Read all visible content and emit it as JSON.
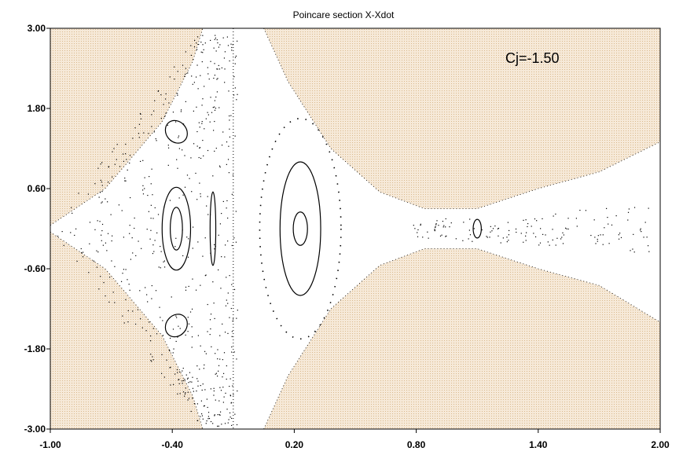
{
  "chart_data": {
    "type": "scatter",
    "title": "Poincare section X-Xdot",
    "annotation": "Cj=-1.50",
    "xlabel": "",
    "ylabel": "",
    "xlim": [
      -1.0,
      2.0
    ],
    "ylim": [
      -3.0,
      3.0
    ],
    "x_ticks": [
      -1.0,
      -0.4,
      0.2,
      0.8,
      1.4,
      2.0
    ],
    "x_tick_labels": [
      "-1.00",
      "-0.40",
      "0.20",
      "0.80",
      "1.40",
      "2.00"
    ],
    "y_ticks": [
      3.0,
      1.8,
      0.6,
      -0.6,
      -1.8,
      -3.0
    ],
    "y_tick_labels": [
      "3.00",
      "1.80",
      "0.60",
      "-0.60",
      "-1.80",
      "-3.00"
    ],
    "grid": false,
    "colors": {
      "forbidden_region": "#f6e9d8",
      "forbidden_dots": "#d9b98c",
      "points": "#000000",
      "axes": "#000000"
    },
    "forbidden_region_boundary": {
      "upper_left": [
        [
          -1.0,
          0.05
        ],
        [
          -0.73,
          0.6
        ],
        [
          -0.45,
          1.6
        ],
        [
          -0.3,
          2.5
        ],
        [
          -0.25,
          3.0
        ]
      ],
      "lower_left": [
        [
          -1.0,
          -0.05
        ],
        [
          -0.73,
          -0.6
        ],
        [
          -0.45,
          -1.6
        ],
        [
          -0.3,
          -2.5
        ],
        [
          -0.25,
          -3.0
        ]
      ],
      "upper_right": [
        [
          0.05,
          3.0
        ],
        [
          0.17,
          2.2
        ],
        [
          0.38,
          1.2
        ],
        [
          0.62,
          0.55
        ],
        [
          0.84,
          0.3
        ],
        [
          1.1,
          0.3
        ],
        [
          1.4,
          0.6
        ],
        [
          1.7,
          0.85
        ],
        [
          2.0,
          1.3
        ]
      ],
      "lower_right": [
        [
          0.05,
          -3.0
        ],
        [
          0.17,
          -2.2
        ],
        [
          0.38,
          -1.2
        ],
        [
          0.62,
          -0.55
        ],
        [
          0.84,
          -0.3
        ],
        [
          1.1,
          -0.3
        ],
        [
          1.4,
          -0.6
        ],
        [
          1.7,
          -0.85
        ],
        [
          2.0,
          -1.4
        ]
      ]
    },
    "series": [
      {
        "kind": "loop",
        "center": [
          0.23,
          0.0
        ],
        "rx": 0.035,
        "ry": 0.25
      },
      {
        "kind": "loop",
        "center": [
          0.23,
          0.0
        ],
        "rx": 0.1,
        "ry": 1.0
      },
      {
        "kind": "dotted-loop",
        "center": [
          0.23,
          0.0
        ],
        "rx": 0.2,
        "ry": 1.65
      },
      {
        "kind": "loop",
        "center": [
          -0.38,
          0.0
        ],
        "rx": 0.03,
        "ry": 0.32
      },
      {
        "kind": "loop",
        "center": [
          -0.38,
          0.0
        ],
        "rx": 0.07,
        "ry": 0.62
      },
      {
        "kind": "loop",
        "center": [
          -0.2,
          0.0
        ],
        "rx": 0.014,
        "ry": 0.55
      },
      {
        "kind": "loop",
        "center": [
          -0.38,
          1.45
        ],
        "rx": 0.05,
        "ry": 0.18,
        "tilt": -40
      },
      {
        "kind": "loop",
        "center": [
          -0.38,
          -1.45
        ],
        "rx": 0.05,
        "ry": 0.18,
        "tilt": 40
      },
      {
        "kind": "loop",
        "center": [
          1.1,
          0.0
        ],
        "rx": 0.02,
        "ry": 0.14
      },
      {
        "kind": "vertical-dotted-line",
        "x": -0.1,
        "y_range": [
          -3.0,
          3.0
        ]
      }
    ]
  }
}
